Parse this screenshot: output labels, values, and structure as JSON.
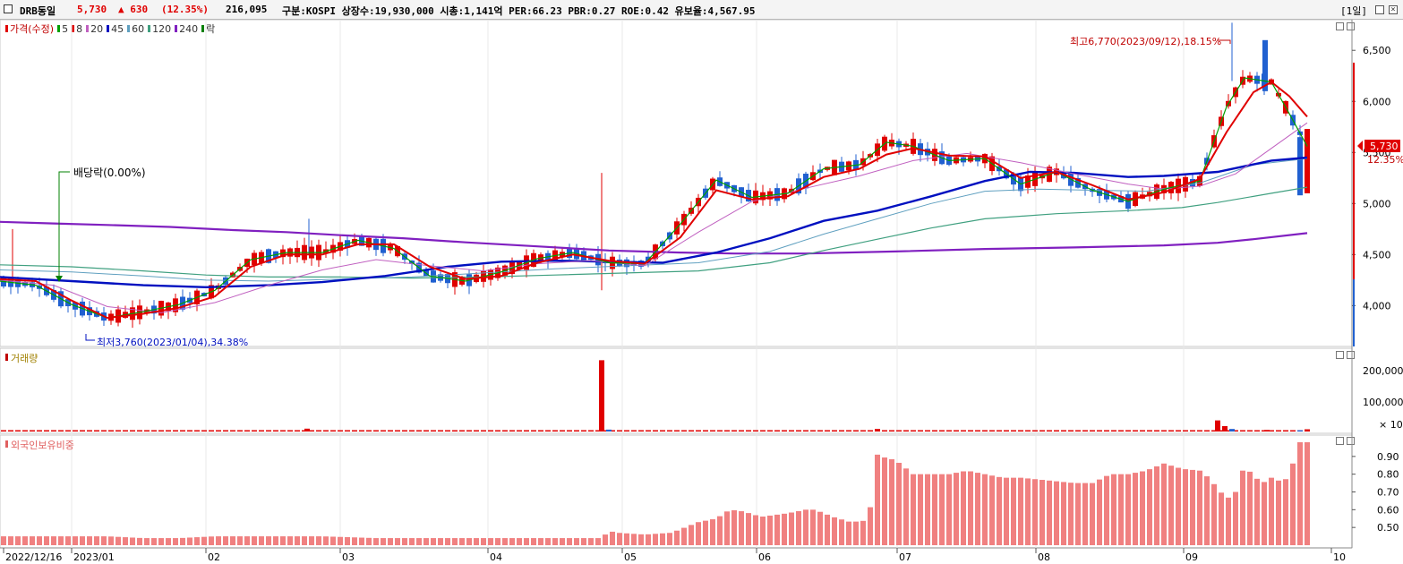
{
  "header": {
    "name": "DRB동일",
    "price": "5,730",
    "change": "▲ 630",
    "change_pct": "(12.35%)",
    "volume": "216,095",
    "info": "구분:KOSPI 상장수:19,930,000 시총:1,141억 PER:66.23 PBR:0.27 ROE:0.42 유보율:4,567.95",
    "period": "[1일]"
  },
  "price_panel": {
    "legend": [
      {
        "label": "가격(수정)",
        "color": "#e00000"
      },
      {
        "label": "5",
        "color": "#00a000"
      },
      {
        "label": "8",
        "color": "#e00000"
      },
      {
        "label": "20",
        "color": "#c060c0"
      },
      {
        "label": "45",
        "color": "#0010c0"
      },
      {
        "label": "60",
        "color": "#60a0c0"
      },
      {
        "label": "120",
        "color": "#40a080"
      },
      {
        "label": "240",
        "color": "#8020c0"
      },
      {
        "label": "락",
        "color": "#008000"
      }
    ],
    "high_label": "최고6,770(2023/09/12),18.15%",
    "low_label": "최저3,760(2023/01/04),34.38%",
    "dividend_label": "배당락(0.00%)",
    "current_price_tag": "5,730",
    "current_pct_tag": "12.35%",
    "y_ticks": [
      "6,500",
      "6,000",
      "5,500",
      "5,000",
      "4,500",
      "4,000"
    ]
  },
  "volume_panel": {
    "title": "거래량",
    "y_ticks": [
      "200,000",
      "100,000"
    ],
    "multiplier": "× 10"
  },
  "foreign_panel": {
    "title": "외국인보유비중",
    "y_ticks": [
      "0.90",
      "0.80",
      "0.70",
      "0.60",
      "0.50"
    ]
  },
  "x_axis": {
    "labels": [
      "2022/12/16",
      "2023/01",
      "02",
      "03",
      "04",
      "05",
      "06",
      "07",
      "08",
      "09",
      "10"
    ]
  },
  "chart_data": [
    {
      "type": "line",
      "title": "",
      "ylim": [
        3600,
        6800
      ],
      "series": [
        {
          "name": "240",
          "values": [
            [
              0,
              4820
            ],
            [
              60,
              4805
            ],
            [
              120,
              4790
            ],
            [
              190,
              4770
            ],
            [
              260,
              4740
            ],
            [
              320,
              4720
            ],
            [
              380,
              4690
            ],
            [
              450,
              4660
            ],
            [
              520,
              4620
            ],
            [
              600,
              4580
            ],
            [
              680,
              4540
            ],
            [
              760,
              4520
            ],
            [
              820,
              4510
            ],
            [
              900,
              4510
            ],
            [
              1000,
              4530
            ],
            [
              1100,
              4555
            ],
            [
              1200,
              4570
            ],
            [
              1300,
              4590
            ],
            [
              1360,
              4615
            ],
            [
              1400,
              4650
            ],
            [
              1460,
              4710
            ]
          ]
        },
        {
          "name": "120",
          "values": [
            [
              0,
              4400
            ],
            [
              80,
              4380
            ],
            [
              160,
              4340
            ],
            [
              230,
              4300
            ],
            [
              300,
              4280
            ],
            [
              380,
              4280
            ],
            [
              460,
              4270
            ],
            [
              540,
              4280
            ],
            [
              620,
              4300
            ],
            [
              700,
              4320
            ],
            [
              780,
              4340
            ],
            [
              860,
              4420
            ],
            [
              920,
              4540
            ],
            [
              980,
              4650
            ],
            [
              1040,
              4760
            ],
            [
              1100,
              4850
            ],
            [
              1180,
              4900
            ],
            [
              1260,
              4930
            ],
            [
              1320,
              4960
            ],
            [
              1360,
              5010
            ],
            [
              1420,
              5100
            ],
            [
              1460,
              5160
            ]
          ]
        },
        {
          "name": "60",
          "values": [
            [
              0,
              4350
            ],
            [
              80,
              4330
            ],
            [
              160,
              4290
            ],
            [
              230,
              4250
            ],
            [
              300,
              4240
            ],
            [
              380,
              4260
            ],
            [
              460,
              4280
            ],
            [
              540,
              4320
            ],
            [
              620,
              4360
            ],
            [
              700,
              4390
            ],
            [
              780,
              4420
            ],
            [
              860,
              4530
            ],
            [
              920,
              4700
            ],
            [
              980,
              4850
            ],
            [
              1040,
              5000
            ],
            [
              1100,
              5120
            ],
            [
              1160,
              5140
            ],
            [
              1220,
              5130
            ],
            [
              1280,
              5120
            ],
            [
              1340,
              5200
            ],
            [
              1400,
              5380
            ],
            [
              1460,
              5440
            ]
          ]
        },
        {
          "name": "45",
          "values": [
            [
              0,
              4280
            ],
            [
              80,
              4240
            ],
            [
              160,
              4200
            ],
            [
              230,
              4180
            ],
            [
              300,
              4200
            ],
            [
              360,
              4230
            ],
            [
              430,
              4290
            ],
            [
              500,
              4380
            ],
            [
              560,
              4430
            ],
            [
              620,
              4440
            ],
            [
              680,
              4430
            ],
            [
              740,
              4420
            ],
            [
              800,
              4520
            ],
            [
              860,
              4660
            ],
            [
              920,
              4830
            ],
            [
              980,
              4930
            ],
            [
              1040,
              5070
            ],
            [
              1100,
              5220
            ],
            [
              1150,
              5310
            ],
            [
              1200,
              5300
            ],
            [
              1260,
              5260
            ],
            [
              1300,
              5270
            ],
            [
              1360,
              5310
            ],
            [
              1420,
              5420
            ],
            [
              1460,
              5450
            ]
          ]
        },
        {
          "name": "20",
          "values": [
            [
              0,
              4250
            ],
            [
              60,
              4200
            ],
            [
              120,
              3990
            ],
            [
              180,
              3930
            ],
            [
              240,
              4030
            ],
            [
              300,
              4200
            ],
            [
              360,
              4350
            ],
            [
              420,
              4450
            ],
            [
              480,
              4390
            ],
            [
              540,
              4340
            ],
            [
              600,
              4410
            ],
            [
              660,
              4440
            ],
            [
              720,
              4390
            ],
            [
              780,
              4720
            ],
            [
              840,
              5020
            ],
            [
              900,
              5150
            ],
            [
              960,
              5270
            ],
            [
              1020,
              5420
            ],
            [
              1080,
              5490
            ],
            [
              1140,
              5400
            ],
            [
              1200,
              5290
            ],
            [
              1260,
              5190
            ],
            [
              1300,
              5140
            ],
            [
              1340,
              5170
            ],
            [
              1380,
              5290
            ],
            [
              1420,
              5540
            ],
            [
              1460,
              5790
            ]
          ]
        },
        {
          "name": "5",
          "values": [
            [
              0,
              4240
            ],
            [
              40,
              4200
            ],
            [
              80,
              4010
            ],
            [
              120,
              3880
            ],
            [
              160,
              3940
            ],
            [
              200,
              4010
            ],
            [
              240,
              4150
            ],
            [
              280,
              4450
            ],
            [
              320,
              4520
            ],
            [
              360,
              4520
            ],
            [
              400,
              4640
            ],
            [
              440,
              4560
            ],
            [
              480,
              4290
            ],
            [
              520,
              4240
            ],
            [
              560,
              4330
            ],
            [
              600,
              4460
            ],
            [
              640,
              4520
            ],
            [
              680,
              4420
            ],
            [
              720,
              4410
            ],
            [
              760,
              4800
            ],
            [
              800,
              5230
            ],
            [
              840,
              5060
            ],
            [
              880,
              5100
            ],
            [
              920,
              5340
            ],
            [
              960,
              5380
            ],
            [
              990,
              5600
            ],
            [
              1020,
              5560
            ],
            [
              1060,
              5420
            ],
            [
              1100,
              5440
            ],
            [
              1140,
              5190
            ],
            [
              1180,
              5310
            ],
            [
              1220,
              5130
            ],
            [
              1260,
              5020
            ],
            [
              1300,
              5140
            ],
            [
              1340,
              5220
            ],
            [
              1370,
              5950
            ],
            [
              1390,
              6230
            ],
            [
              1420,
              6190
            ],
            [
              1440,
              5880
            ],
            [
              1460,
              5560
            ]
          ]
        },
        {
          "name": "8",
          "values": [
            [
              0,
              4260
            ],
            [
              40,
              4240
            ],
            [
              80,
              4050
            ],
            [
              120,
              3880
            ],
            [
              160,
              3920
            ],
            [
              200,
              3980
            ],
            [
              240,
              4090
            ],
            [
              280,
              4380
            ],
            [
              320,
              4500
            ],
            [
              360,
              4500
            ],
            [
              400,
              4600
            ],
            [
              440,
              4600
            ],
            [
              480,
              4380
            ],
            [
              520,
              4260
            ],
            [
              560,
              4290
            ],
            [
              600,
              4420
            ],
            [
              640,
              4500
            ],
            [
              680,
              4440
            ],
            [
              720,
              4410
            ],
            [
              760,
              4670
            ],
            [
              800,
              5130
            ],
            [
              840,
              5040
            ],
            [
              880,
              5070
            ],
            [
              920,
              5260
            ],
            [
              960,
              5340
            ],
            [
              990,
              5480
            ],
            [
              1020,
              5540
            ],
            [
              1060,
              5470
            ],
            [
              1100,
              5460
            ],
            [
              1140,
              5250
            ],
            [
              1180,
              5310
            ],
            [
              1220,
              5180
            ],
            [
              1260,
              5040
            ],
            [
              1300,
              5110
            ],
            [
              1340,
              5240
            ],
            [
              1370,
              5700
            ],
            [
              1400,
              6090
            ],
            [
              1420,
              6190
            ],
            [
              1440,
              6050
            ],
            [
              1460,
              5850
            ]
          ]
        }
      ]
    },
    {
      "type": "bar",
      "title": "거래량",
      "ylim": [
        0,
        260000
      ],
      "values": [
        {
          "x": 343,
          "v": 9000
        },
        {
          "x": 672,
          "v": 225000
        },
        {
          "x": 680,
          "v": 6000
        },
        {
          "x": 980,
          "v": 8000
        },
        {
          "x": 1360,
          "v": 35000
        },
        {
          "x": 1368,
          "v": 17000
        },
        {
          "x": 1376,
          "v": 8000
        },
        {
          "x": 1415,
          "v": 5000
        },
        {
          "x": 1452,
          "v": 4000
        },
        {
          "x": 1460,
          "v": 7000
        }
      ],
      "baseline": 1500
    },
    {
      "type": "bar",
      "title": "외국인보유비중",
      "ylim": [
        0.4,
        1.0
      ],
      "values": [
        [
          0,
          0.45
        ],
        [
          80,
          0.45
        ],
        [
          120,
          0.45
        ],
        [
          160,
          0.44
        ],
        [
          200,
          0.44
        ],
        [
          240,
          0.45
        ],
        [
          300,
          0.45
        ],
        [
          360,
          0.45
        ],
        [
          420,
          0.44
        ],
        [
          480,
          0.44
        ],
        [
          540,
          0.44
        ],
        [
          600,
          0.44
        ],
        [
          660,
          0.44
        ],
        [
          672,
          0.44
        ],
        [
          680,
          0.48
        ],
        [
          690,
          0.47
        ],
        [
          720,
          0.46
        ],
        [
          750,
          0.47
        ],
        [
          780,
          0.53
        ],
        [
          800,
          0.55
        ],
        [
          815,
          0.6
        ],
        [
          830,
          0.59
        ],
        [
          850,
          0.56
        ],
        [
          880,
          0.58
        ],
        [
          900,
          0.6
        ],
        [
          910,
          0.6
        ],
        [
          930,
          0.56
        ],
        [
          950,
          0.53
        ],
        [
          970,
          0.54
        ],
        [
          980,
          0.91
        ],
        [
          990,
          0.89
        ],
        [
          1000,
          0.88
        ],
        [
          1020,
          0.8
        ],
        [
          1040,
          0.8
        ],
        [
          1060,
          0.8
        ],
        [
          1080,
          0.82
        ],
        [
          1100,
          0.8
        ],
        [
          1120,
          0.78
        ],
        [
          1140,
          0.78
        ],
        [
          1160,
          0.77
        ],
        [
          1180,
          0.76
        ],
        [
          1200,
          0.75
        ],
        [
          1220,
          0.75
        ],
        [
          1240,
          0.8
        ],
        [
          1260,
          0.8
        ],
        [
          1280,
          0.82
        ],
        [
          1300,
          0.86
        ],
        [
          1320,
          0.83
        ],
        [
          1340,
          0.82
        ],
        [
          1350,
          0.78
        ],
        [
          1360,
          0.72
        ],
        [
          1370,
          0.66
        ],
        [
          1380,
          0.7
        ],
        [
          1390,
          0.85
        ],
        [
          1400,
          0.79
        ],
        [
          1410,
          0.75
        ],
        [
          1420,
          0.78
        ],
        [
          1430,
          0.76
        ],
        [
          1440,
          0.78
        ],
        [
          1450,
          0.98
        ],
        [
          1460,
          0.98
        ]
      ]
    }
  ]
}
